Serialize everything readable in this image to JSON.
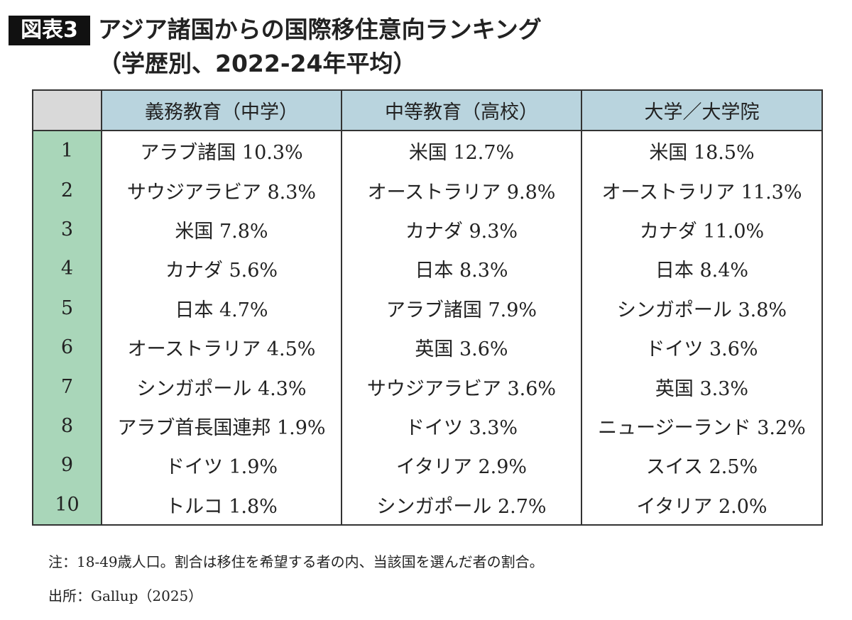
{
  "header": {
    "badge": "図表3",
    "title": "アジア諸国からの国際移住意向ランキング",
    "subtitle": "（学歴別、2022-24年平均）"
  },
  "table": {
    "columns": [
      "義務教育（中学）",
      "中等教育（高校）",
      "大学／大学院"
    ],
    "rows": [
      [
        1,
        "アラブ諸国 10.3%",
        "米国 12.7%",
        "米国 18.5%"
      ],
      [
        2,
        "サウジアラビア 8.3%",
        "オーストラリア 9.8%",
        "オーストラリア 11.3%"
      ],
      [
        3,
        "米国 7.8%",
        "カナダ 9.3%",
        "カナダ 11.0%"
      ],
      [
        4,
        "カナダ 5.6%",
        "日本 8.3%",
        "日本 8.4%"
      ],
      [
        5,
        "日本 4.7%",
        "アラブ諸国 7.9%",
        "シンガポール 3.8%"
      ],
      [
        6,
        "オーストラリア 4.5%",
        "英国 3.6%",
        "ドイツ 3.6%"
      ],
      [
        7,
        "シンガポール 4.3%",
        "サウジアラビア 3.6%",
        "英国 3.3%"
      ],
      [
        8,
        "アラブ首長国連邦 1.9%",
        "ドイツ 3.3%",
        "ニュージーランド 3.2%"
      ],
      [
        9,
        "ドイツ 1.9%",
        "イタリア 2.9%",
        "スイス 2.5%"
      ],
      [
        10,
        "トルコ 1.8%",
        "シンガポール 2.7%",
        "イタリア 2.0%"
      ]
    ]
  },
  "notes": [
    "注：18-49歳人口。割合は移住を希望する者の内、当該国を選んだ者の割合。",
    "出所：Gallup（2025）"
  ]
}
